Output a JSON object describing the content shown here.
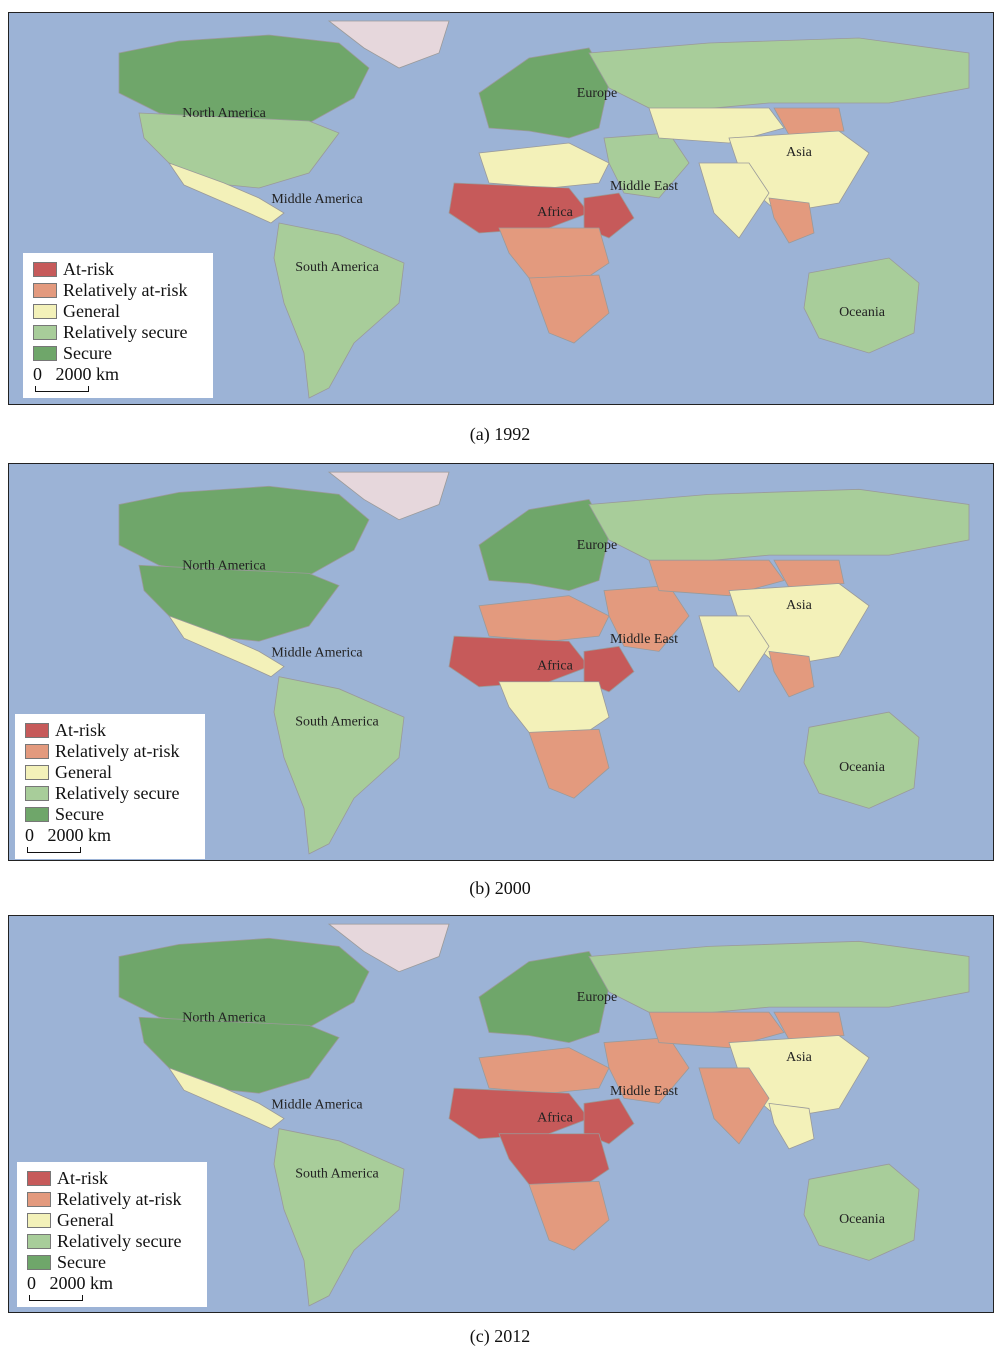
{
  "colors": {
    "ocean": "#9cb3d6",
    "at_risk": "#c65a5a",
    "relatively_at_risk": "#e39a7e",
    "general": "#f3f1b9",
    "relatively_secure": "#a8cd9a",
    "secure": "#6fa66a",
    "ice": "#e6d7dc"
  },
  "legend": {
    "items": [
      {
        "label": "At-risk",
        "color": "#c65a5a"
      },
      {
        "label": "Relatively at-risk",
        "color": "#e39a7e"
      },
      {
        "label": "General",
        "color": "#f3f1b9"
      },
      {
        "label": "Relatively secure",
        "color": "#a8cd9a"
      },
      {
        "label": "Secure",
        "color": "#6fa66a"
      }
    ],
    "scale_zero": "0",
    "scale_distance": "2000 km"
  },
  "regions": {
    "north_america": "North America",
    "middle_america": "Middle America",
    "south_america": "South America",
    "europe": "Europe",
    "africa": "Africa",
    "middle_east": "Middle East",
    "asia": "Asia",
    "oceania": "Oceania"
  },
  "panels": [
    {
      "caption": "(a) 1992",
      "status": {
        "north_america": "relatively_secure",
        "canada": "secure",
        "middle_america": "general",
        "south_america": "relatively_secure",
        "europe": "secure",
        "russia": "relatively_secure",
        "north_africa": "general",
        "sahel": "at_risk",
        "central_africa": "relatively_at_risk",
        "east_africa": "at_risk",
        "southern_africa": "relatively_at_risk",
        "middle_east": "relatively_secure",
        "central_asia": "general",
        "mongolia": "relatively_at_risk",
        "china": "general",
        "india": "general",
        "southeast_asia": "relatively_at_risk",
        "australia": "relatively_secure"
      }
    },
    {
      "caption": "(b) 2000",
      "status": {
        "north_america": "secure",
        "canada": "secure",
        "middle_america": "general",
        "south_america": "relatively_secure",
        "europe": "secure",
        "russia": "relatively_secure",
        "north_africa": "relatively_at_risk",
        "sahel": "at_risk",
        "central_africa": "general",
        "east_africa": "at_risk",
        "southern_africa": "relatively_at_risk",
        "middle_east": "relatively_at_risk",
        "central_asia": "relatively_at_risk",
        "mongolia": "relatively_at_risk",
        "china": "general",
        "india": "general",
        "southeast_asia": "relatively_at_risk",
        "australia": "relatively_secure"
      }
    },
    {
      "caption": "(c) 2012",
      "status": {
        "north_america": "secure",
        "canada": "secure",
        "middle_america": "general",
        "south_america": "relatively_secure",
        "europe": "secure",
        "russia": "relatively_secure",
        "north_africa": "relatively_at_risk",
        "sahel": "at_risk",
        "central_africa": "at_risk",
        "east_africa": "at_risk",
        "southern_africa": "relatively_at_risk",
        "middle_east": "relatively_at_risk",
        "central_asia": "relatively_at_risk",
        "mongolia": "relatively_at_risk",
        "china": "general",
        "india": "relatively_at_risk",
        "southeast_asia": "general",
        "australia": "relatively_secure"
      }
    }
  ]
}
